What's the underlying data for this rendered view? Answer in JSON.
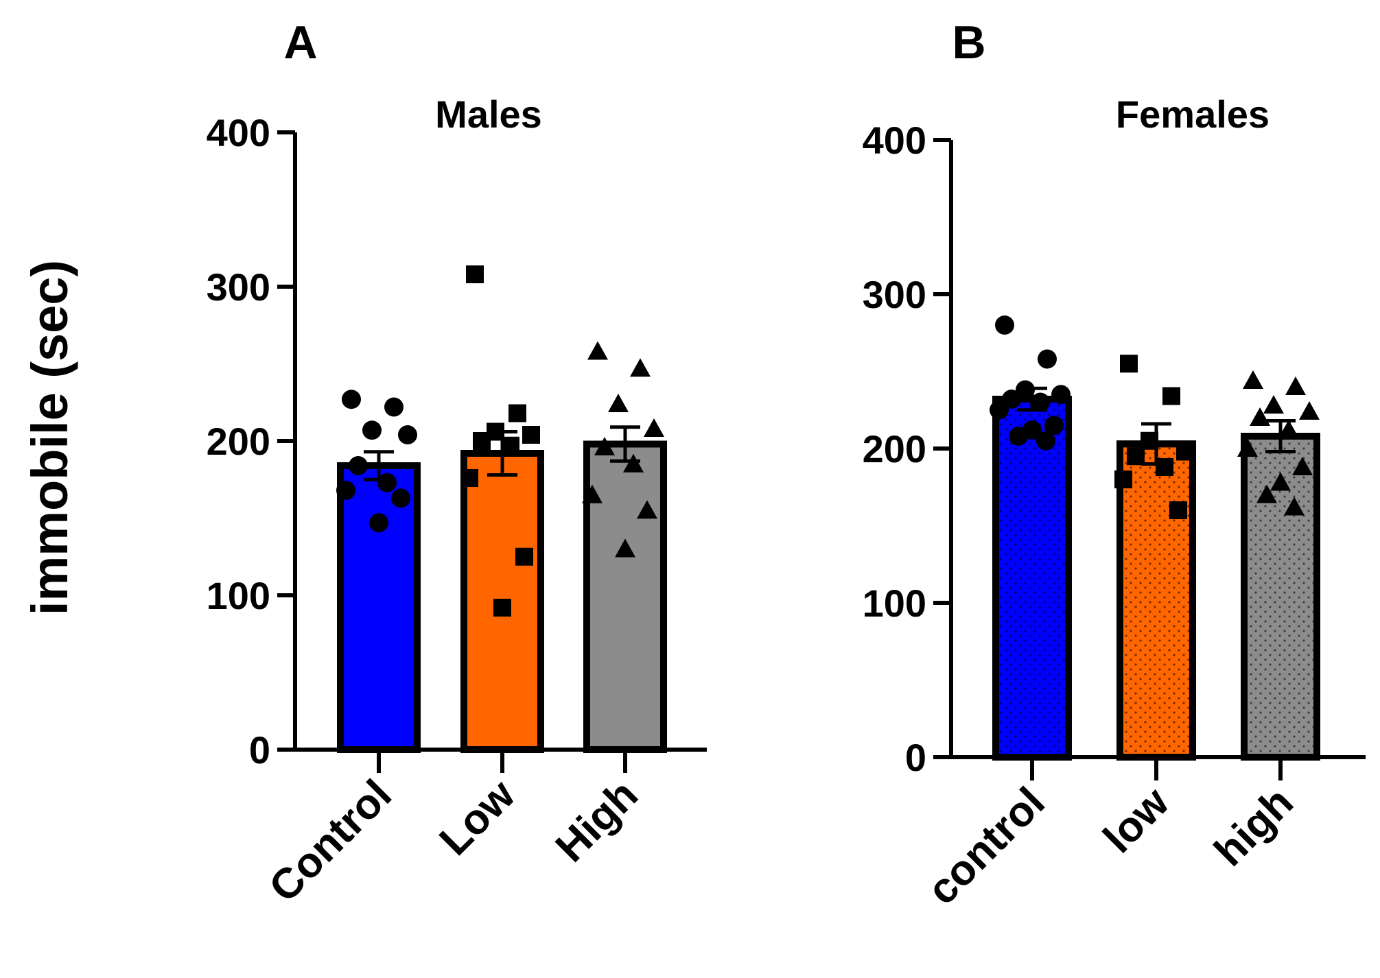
{
  "figure": {
    "ylabel": "immobile  (sec)"
  },
  "colors": {
    "control": "#0000ff",
    "low": "#ff6600",
    "high": "#8c8c8c",
    "axis": "#000000"
  },
  "chart_data": [
    {
      "panel_letter": "A",
      "title": "Males",
      "type": "bar",
      "ylim": [
        0,
        400
      ],
      "yticks": [
        "0",
        "100",
        "200",
        "300",
        "400"
      ],
      "ylabel": "immobile  (sec)",
      "pattern": "solid",
      "categories": [
        "Control",
        "Low",
        "High"
      ],
      "values": [
        184,
        192,
        198
      ],
      "sem": [
        9,
        14,
        11
      ],
      "markers": [
        "circle",
        "square",
        "triangle"
      ],
      "points": [
        [
          227,
          222,
          207,
          204,
          184,
          173,
          168,
          163,
          147
        ],
        [
          308,
          218,
          206,
          204,
          200,
          197,
          176,
          125,
          92
        ],
        [
          258,
          247,
          224,
          208,
          196,
          185,
          165,
          155,
          130
        ]
      ]
    },
    {
      "panel_letter": "B",
      "title": "Females",
      "type": "bar",
      "ylim": [
        0,
        400
      ],
      "yticks": [
        "0",
        "100",
        "200",
        "300",
        "400"
      ],
      "pattern": "dotted",
      "categories": [
        "control",
        "low",
        "high"
      ],
      "values": [
        232,
        203,
        208
      ],
      "sem": [
        7,
        13,
        10
      ],
      "markers": [
        "circle",
        "square",
        "triangle"
      ],
      "points": [
        [
          280,
          258,
          238,
          235,
          232,
          230,
          225,
          215,
          212,
          208,
          205
        ],
        [
          255,
          234,
          205,
          198,
          195,
          188,
          180,
          160
        ],
        [
          244,
          240,
          228,
          224,
          220,
          212,
          200,
          188,
          178,
          170,
          162
        ]
      ]
    }
  ]
}
